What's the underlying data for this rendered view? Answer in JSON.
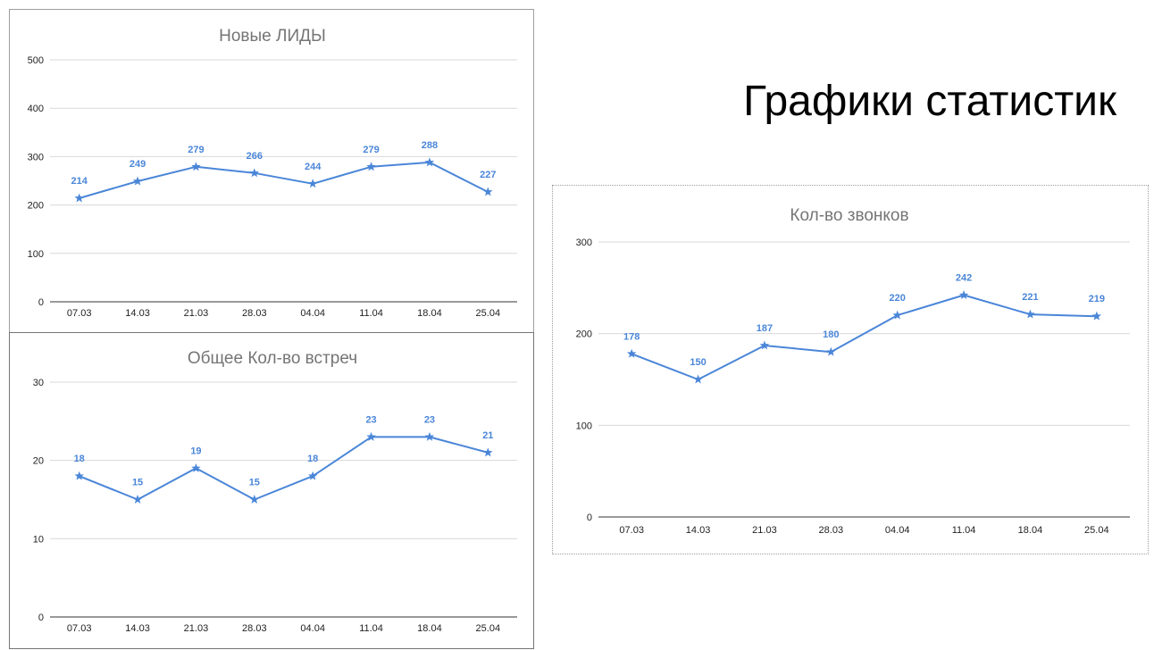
{
  "slide": {
    "title": "Графики статистик"
  },
  "colors": {
    "series": "#4a86d8",
    "label": "#4a86d8",
    "grid": "#d9d9d9"
  },
  "chart_data": [
    {
      "id": "leads",
      "type": "line",
      "title": "Новые ЛИДЫ",
      "categories": [
        "07.03",
        "14.03",
        "21.03",
        "28.03",
        "04.04",
        "11.04",
        "18.04",
        "25.04"
      ],
      "series": [
        {
          "values": [
            214,
            249,
            279,
            266,
            244,
            279,
            288,
            227
          ]
        }
      ],
      "ylim": [
        0,
        500
      ],
      "yticks": [
        0,
        100,
        200,
        300,
        400,
        500
      ],
      "marker": "star",
      "data_labels": true,
      "grid": true
    },
    {
      "id": "meetings",
      "type": "line",
      "title": "Общее Кол-во встреч",
      "categories": [
        "07.03",
        "14.03",
        "21.03",
        "28.03",
        "04.04",
        "11.04",
        "18.04",
        "25.04"
      ],
      "series": [
        {
          "values": [
            18,
            15,
            19,
            15,
            18,
            23,
            23,
            21
          ]
        }
      ],
      "ylim": [
        0,
        30
      ],
      "yticks": [
        0,
        10,
        20,
        30
      ],
      "marker": "star",
      "data_labels": true,
      "grid": true
    },
    {
      "id": "calls",
      "type": "line",
      "title": "Кол-во звонков",
      "categories": [
        "07.03",
        "14.03",
        "21.03",
        "28.03",
        "04.04",
        "11.04",
        "18.04",
        "25.04"
      ],
      "series": [
        {
          "values": [
            178,
            150,
            187,
            180,
            220,
            242,
            221,
            219
          ]
        }
      ],
      "ylim": [
        0,
        300
      ],
      "yticks": [
        0,
        100,
        200,
        300
      ],
      "marker": "star",
      "data_labels": true,
      "grid": true
    }
  ]
}
